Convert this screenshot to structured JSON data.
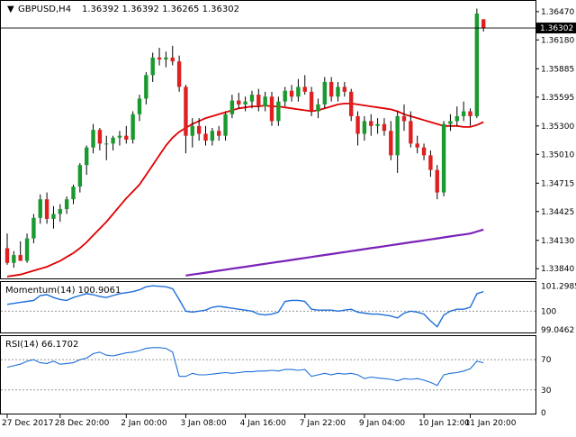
{
  "header": {
    "symbol_label": "GBPUSD,H4",
    "ohlc_text": "1.36392 1.36392 1.36265 1.36302"
  },
  "price_axis": {
    "ticks": [
      "1.36470",
      "1.36180",
      "1.35885",
      "1.35595",
      "1.35300",
      "1.35010",
      "1.34715",
      "1.34425",
      "1.34130",
      "1.33840"
    ],
    "range": [
      1.3375,
      1.3657
    ],
    "current_price_label": "1.36302",
    "current_price": 1.36302
  },
  "time_axis": {
    "labels": [
      "27 Dec 2017",
      "28 Dec 20:00",
      "2 Jan 00:00",
      "3 Jan 08:00",
      "4 Jan 16:00",
      "7 Jan 22:00",
      "9 Jan 04:00",
      "10 Jan 12:00",
      "11 Jan 20:00"
    ]
  },
  "momentum": {
    "label": "Momentum(14) 100.9061",
    "ticks": [
      "101.2985",
      "100",
      "99.0462"
    ],
    "range": [
      98.95,
      101.45
    ],
    "reference_level": 100
  },
  "rsi": {
    "label": "RSI(14) 66.1702",
    "ticks": [
      "70",
      "30",
      "0"
    ],
    "range": [
      0,
      100
    ],
    "levels": [
      70,
      30
    ]
  },
  "colors": {
    "bull": "#1a9a2e",
    "bear": "#e02020",
    "ma_fast": "#e00000",
    "ma_slow": "#7a22b8",
    "indicator": "#1e6fd9",
    "grid": "#000000"
  },
  "chart_data": {
    "type": "candlestick",
    "symbol": "GBPUSD",
    "timeframe": "H4",
    "candles": [
      {
        "o": 1.3405,
        "h": 1.342,
        "l": 1.3388,
        "c": 1.339
      },
      {
        "o": 1.339,
        "h": 1.3402,
        "l": 1.3385,
        "c": 1.3398
      },
      {
        "o": 1.3398,
        "h": 1.3412,
        "l": 1.3392,
        "c": 1.3392
      },
      {
        "o": 1.3392,
        "h": 1.342,
        "l": 1.339,
        "c": 1.3415
      },
      {
        "o": 1.3415,
        "h": 1.344,
        "l": 1.341,
        "c": 1.3436
      },
      {
        "o": 1.3436,
        "h": 1.346,
        "l": 1.343,
        "c": 1.3455
      },
      {
        "o": 1.3455,
        "h": 1.3462,
        "l": 1.343,
        "c": 1.3435
      },
      {
        "o": 1.3435,
        "h": 1.3448,
        "l": 1.3425,
        "c": 1.344
      },
      {
        "o": 1.344,
        "h": 1.345,
        "l": 1.3432,
        "c": 1.3445
      },
      {
        "o": 1.3445,
        "h": 1.3458,
        "l": 1.344,
        "c": 1.3455
      },
      {
        "o": 1.3455,
        "h": 1.347,
        "l": 1.345,
        "c": 1.3468
      },
      {
        "o": 1.3468,
        "h": 1.3492,
        "l": 1.3462,
        "c": 1.349
      },
      {
        "o": 1.349,
        "h": 1.351,
        "l": 1.348,
        "c": 1.3508
      },
      {
        "o": 1.3508,
        "h": 1.3532,
        "l": 1.3502,
        "c": 1.3526
      },
      {
        "o": 1.3526,
        "h": 1.3528,
        "l": 1.3505,
        "c": 1.3512
      },
      {
        "o": 1.3512,
        "h": 1.352,
        "l": 1.3495,
        "c": 1.3512
      },
      {
        "o": 1.3512,
        "h": 1.352,
        "l": 1.3505,
        "c": 1.3518
      },
      {
        "o": 1.3518,
        "h": 1.3525,
        "l": 1.351,
        "c": 1.352
      },
      {
        "o": 1.352,
        "h": 1.353,
        "l": 1.3512,
        "c": 1.3516
      },
      {
        "o": 1.3516,
        "h": 1.3545,
        "l": 1.3512,
        "c": 1.3542
      },
      {
        "o": 1.3542,
        "h": 1.3562,
        "l": 1.3535,
        "c": 1.3558
      },
      {
        "o": 1.3558,
        "h": 1.3585,
        "l": 1.3552,
        "c": 1.3582
      },
      {
        "o": 1.3582,
        "h": 1.3605,
        "l": 1.3575,
        "c": 1.36
      },
      {
        "o": 1.36,
        "h": 1.361,
        "l": 1.3592,
        "c": 1.3598
      },
      {
        "o": 1.3598,
        "h": 1.3606,
        "l": 1.359,
        "c": 1.36
      },
      {
        "o": 1.36,
        "h": 1.3612,
        "l": 1.3592,
        "c": 1.3596
      },
      {
        "o": 1.3596,
        "h": 1.3602,
        "l": 1.3565,
        "c": 1.357
      },
      {
        "o": 1.357,
        "h": 1.3572,
        "l": 1.3502,
        "c": 1.352
      },
      {
        "o": 1.352,
        "h": 1.3538,
        "l": 1.3508,
        "c": 1.353
      },
      {
        "o": 1.353,
        "h": 1.3538,
        "l": 1.3515,
        "c": 1.3522
      },
      {
        "o": 1.3522,
        "h": 1.353,
        "l": 1.351,
        "c": 1.3515
      },
      {
        "o": 1.3515,
        "h": 1.3528,
        "l": 1.351,
        "c": 1.3525
      },
      {
        "o": 1.3525,
        "h": 1.353,
        "l": 1.3515,
        "c": 1.352
      },
      {
        "o": 1.352,
        "h": 1.3545,
        "l": 1.3515,
        "c": 1.3542
      },
      {
        "o": 1.3542,
        "h": 1.3562,
        "l": 1.3538,
        "c": 1.3556
      },
      {
        "o": 1.3556,
        "h": 1.3564,
        "l": 1.3548,
        "c": 1.3552
      },
      {
        "o": 1.3552,
        "h": 1.356,
        "l": 1.3545,
        "c": 1.3555
      },
      {
        "o": 1.3555,
        "h": 1.3566,
        "l": 1.3548,
        "c": 1.3562
      },
      {
        "o": 1.3562,
        "h": 1.3568,
        "l": 1.3545,
        "c": 1.355
      },
      {
        "o": 1.355,
        "h": 1.3565,
        "l": 1.3545,
        "c": 1.356
      },
      {
        "o": 1.356,
        "h": 1.3565,
        "l": 1.353,
        "c": 1.3535
      },
      {
        "o": 1.3535,
        "h": 1.356,
        "l": 1.353,
        "c": 1.3555
      },
      {
        "o": 1.3555,
        "h": 1.357,
        "l": 1.355,
        "c": 1.3566
      },
      {
        "o": 1.3566,
        "h": 1.3572,
        "l": 1.3555,
        "c": 1.356
      },
      {
        "o": 1.356,
        "h": 1.3578,
        "l": 1.3555,
        "c": 1.357
      },
      {
        "o": 1.357,
        "h": 1.3582,
        "l": 1.3562,
        "c": 1.3565
      },
      {
        "o": 1.3565,
        "h": 1.357,
        "l": 1.354,
        "c": 1.3545
      },
      {
        "o": 1.3545,
        "h": 1.3558,
        "l": 1.3538,
        "c": 1.3552
      },
      {
        "o": 1.3552,
        "h": 1.358,
        "l": 1.3548,
        "c": 1.3575
      },
      {
        "o": 1.3575,
        "h": 1.358,
        "l": 1.3555,
        "c": 1.356
      },
      {
        "o": 1.356,
        "h": 1.3575,
        "l": 1.3555,
        "c": 1.357
      },
      {
        "o": 1.357,
        "h": 1.3575,
        "l": 1.356,
        "c": 1.3565
      },
      {
        "o": 1.3565,
        "h": 1.3568,
        "l": 1.3535,
        "c": 1.354
      },
      {
        "o": 1.354,
        "h": 1.3545,
        "l": 1.351,
        "c": 1.3522
      },
      {
        "o": 1.3522,
        "h": 1.354,
        "l": 1.3515,
        "c": 1.3535
      },
      {
        "o": 1.3535,
        "h": 1.3542,
        "l": 1.352,
        "c": 1.353
      },
      {
        "o": 1.353,
        "h": 1.3538,
        "l": 1.3522,
        "c": 1.3532
      },
      {
        "o": 1.3532,
        "h": 1.3538,
        "l": 1.352,
        "c": 1.3525
      },
      {
        "o": 1.3525,
        "h": 1.3535,
        "l": 1.3495,
        "c": 1.35
      },
      {
        "o": 1.35,
        "h": 1.3545,
        "l": 1.3482,
        "c": 1.354
      },
      {
        "o": 1.354,
        "h": 1.3552,
        "l": 1.3525,
        "c": 1.3535
      },
      {
        "o": 1.3535,
        "h": 1.3545,
        "l": 1.3508,
        "c": 1.3512
      },
      {
        "o": 1.3512,
        "h": 1.352,
        "l": 1.3502,
        "c": 1.3508
      },
      {
        "o": 1.3508,
        "h": 1.3512,
        "l": 1.3495,
        "c": 1.35
      },
      {
        "o": 1.35,
        "h": 1.3505,
        "l": 1.3478,
        "c": 1.3485
      },
      {
        "o": 1.3485,
        "h": 1.349,
        "l": 1.3455,
        "c": 1.3462
      },
      {
        "o": 1.3462,
        "h": 1.3535,
        "l": 1.3458,
        "c": 1.3532
      },
      {
        "o": 1.3532,
        "h": 1.3542,
        "l": 1.3525,
        "c": 1.3535
      },
      {
        "o": 1.3535,
        "h": 1.355,
        "l": 1.353,
        "c": 1.354
      },
      {
        "o": 1.354,
        "h": 1.3555,
        "l": 1.3535,
        "c": 1.3545
      },
      {
        "o": 1.3545,
        "h": 1.3548,
        "l": 1.353,
        "c": 1.354
      },
      {
        "o": 1.354,
        "h": 1.365,
        "l": 1.3538,
        "c": 1.3645
      },
      {
        "o": 1.36392,
        "h": 1.36392,
        "l": 1.36265,
        "c": 1.36302
      }
    ],
    "ma_fast": [
      1.3376,
      1.3377,
      1.3378,
      1.338,
      1.3382,
      1.3384,
      1.3386,
      1.3389,
      1.3392,
      1.3396,
      1.34,
      1.3405,
      1.3411,
      1.3418,
      1.3425,
      1.3432,
      1.344,
      1.3448,
      1.3456,
      1.3463,
      1.347,
      1.348,
      1.349,
      1.35,
      1.351,
      1.3518,
      1.3524,
      1.3528,
      1.3532,
      1.3535,
      1.3538,
      1.354,
      1.3542,
      1.3544,
      1.3546,
      1.3548,
      1.3549,
      1.355,
      1.355,
      1.3551,
      1.355,
      1.355,
      1.3549,
      1.3548,
      1.3547,
      1.3546,
      1.3545,
      1.3546,
      1.3548,
      1.355,
      1.3552,
      1.3553,
      1.3553,
      1.3552,
      1.3551,
      1.355,
      1.3549,
      1.3548,
      1.3547,
      1.3545,
      1.3542,
      1.354,
      1.3538,
      1.3536,
      1.3534,
      1.3532,
      1.353,
      1.353,
      1.353,
      1.3529,
      1.3529,
      1.3531,
      1.3534
    ],
    "ma_slow": [
      null,
      null,
      null,
      null,
      null,
      null,
      null,
      null,
      null,
      null,
      null,
      null,
      null,
      null,
      null,
      null,
      null,
      null,
      null,
      null,
      null,
      null,
      null,
      null,
      null,
      null,
      null,
      1.3377,
      1.3378,
      1.3379,
      1.338,
      1.3381,
      1.3382,
      1.3383,
      1.3384,
      1.3385,
      1.3386,
      1.3387,
      1.3388,
      1.3389,
      1.339,
      1.3391,
      1.3392,
      1.3393,
      1.3394,
      1.3395,
      1.3396,
      1.3397,
      1.3398,
      1.3399,
      1.34,
      1.3401,
      1.3402,
      1.3403,
      1.3404,
      1.3405,
      1.3406,
      1.3407,
      1.3408,
      1.3409,
      1.341,
      1.3411,
      1.3412,
      1.3413,
      1.3414,
      1.3415,
      1.3416,
      1.3417,
      1.3418,
      1.3419,
      1.342,
      1.3422,
      1.3424
    ],
    "momentum": [
      100.35,
      100.4,
      100.45,
      100.5,
      100.55,
      100.8,
      100.85,
      100.7,
      100.6,
      100.55,
      100.7,
      100.8,
      100.9,
      100.85,
      100.75,
      100.7,
      100.8,
      100.9,
      100.95,
      101.0,
      101.1,
      101.25,
      101.3,
      101.28,
      101.25,
      101.15,
      100.6,
      100.0,
      99.95,
      100.0,
      100.05,
      100.2,
      100.25,
      100.2,
      100.15,
      100.1,
      100.05,
      100.0,
      99.85,
      99.8,
      99.85,
      99.95,
      100.5,
      100.55,
      100.55,
      100.5,
      100.1,
      100.05,
      100.05,
      100.05,
      100.0,
      100.05,
      100.1,
      99.95,
      99.9,
      99.85,
      99.85,
      99.8,
      99.75,
      99.65,
      99.9,
      100.0,
      99.95,
      99.85,
      99.5,
      99.2,
      99.8,
      100.0,
      100.1,
      100.1,
      100.2,
      100.9,
      101.0
    ],
    "rsi": [
      60,
      62,
      64,
      68,
      70,
      66,
      65,
      68,
      64,
      65,
      66,
      70,
      72,
      78,
      80,
      76,
      75,
      77,
      79,
      80,
      82,
      85,
      86,
      86,
      85,
      80,
      48,
      48,
      52,
      50,
      50,
      51,
      52,
      53,
      52,
      53,
      54,
      54,
      55,
      55,
      56,
      55,
      57,
      57,
      56,
      57,
      48,
      50,
      52,
      50,
      52,
      51,
      52,
      50,
      45,
      47,
      46,
      45,
      44,
      42,
      45,
      44,
      45,
      43,
      40,
      36,
      50,
      52,
      53,
      55,
      58,
      68,
      66
    ]
  }
}
